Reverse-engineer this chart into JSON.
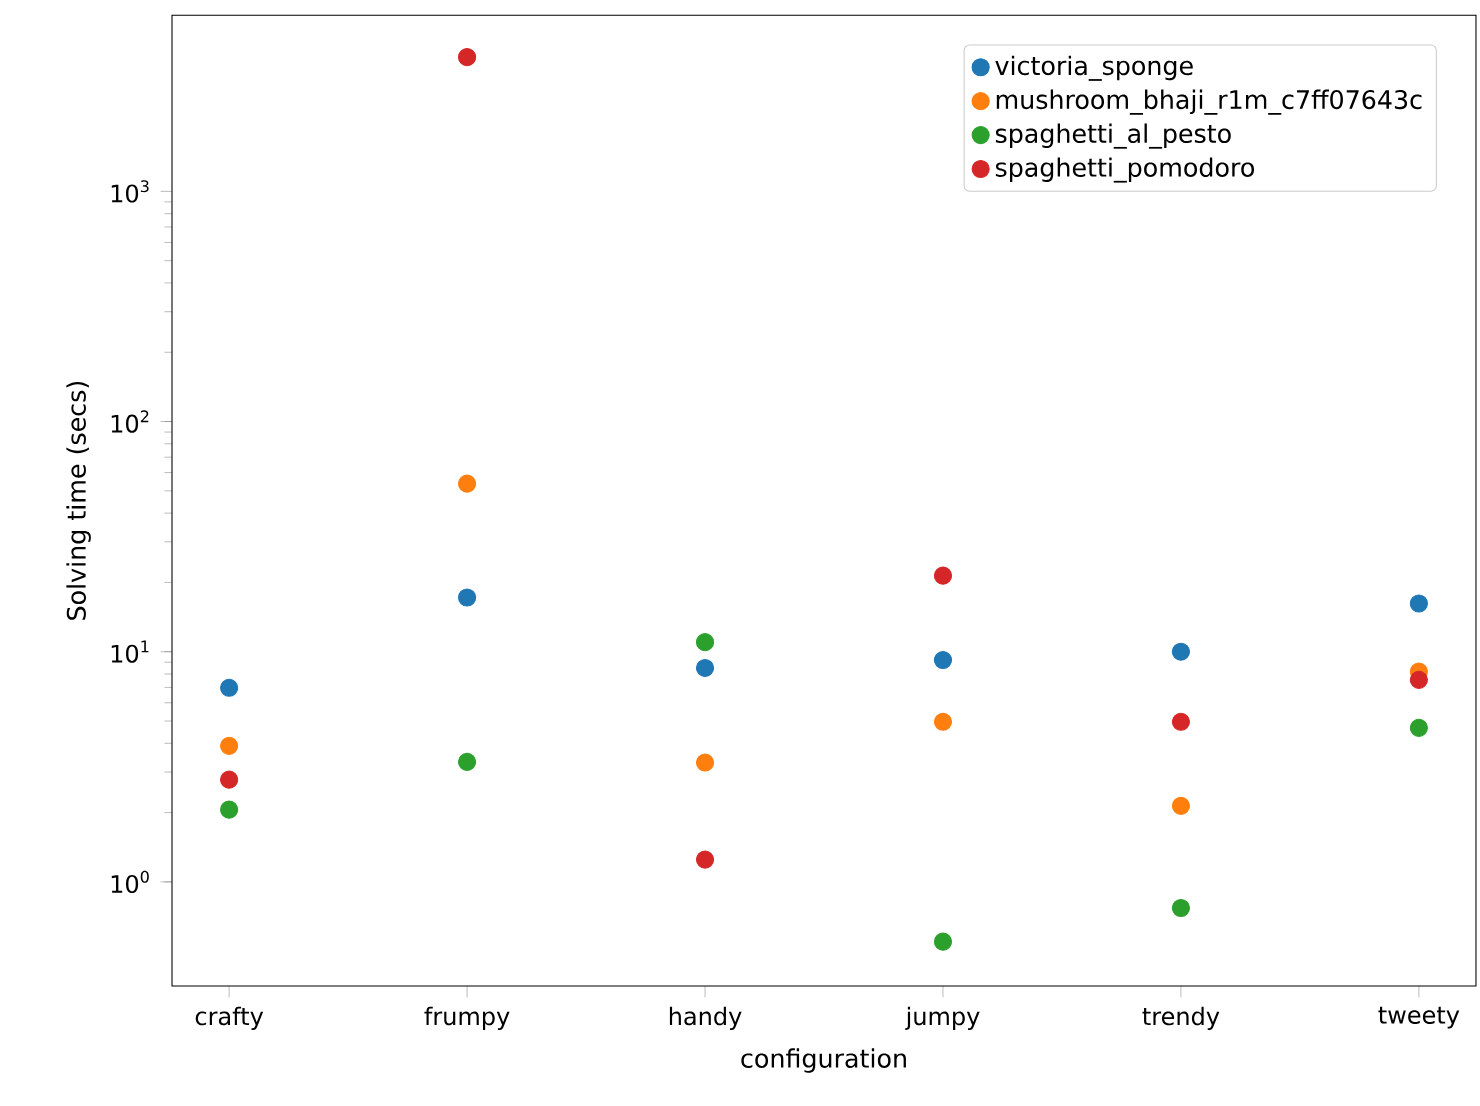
{
  "chart_data": {
    "type": "scatter",
    "xlabel": "configuration",
    "ylabel": "Solving time (secs)",
    "categories": [
      "crafty",
      "frumpy",
      "handy",
      "jumpy",
      "trendy",
      "tweety"
    ],
    "series": [
      {
        "name": "victoria_sponge",
        "color": "#1f77b4",
        "values": [
          6.97,
          17.2,
          8.5,
          9.2,
          10.0,
          16.2
        ]
      },
      {
        "name": "mushroom_bhaji_r1m_c7ff07643c",
        "color": "#ff7f0e",
        "values": [
          3.9,
          53.7,
          3.3,
          4.96,
          2.14,
          8.2
        ]
      },
      {
        "name": "spaghetti_al_pesto",
        "color": "#2ca02c",
        "values": [
          2.06,
          3.32,
          11.0,
          0.55,
          0.77,
          4.67
        ]
      },
      {
        "name": "spaghetti_pomodoro",
        "color": "#d62728",
        "values": [
          2.78,
          3830,
          1.25,
          21.4,
          4.96,
          7.55
        ]
      }
    ],
    "log": "y",
    "ylim": [
      0.353,
      5820
    ],
    "yticks": [
      {
        "value": 1,
        "label": "10$^{0}$"
      },
      {
        "value": 10,
        "label": "10$^{1}$"
      },
      {
        "value": 100,
        "label": "10$^{2}$"
      },
      {
        "value": 1000,
        "label": "10$^{3}$"
      }
    ],
    "legend": "top right",
    "marker": "circle",
    "grid": false
  }
}
